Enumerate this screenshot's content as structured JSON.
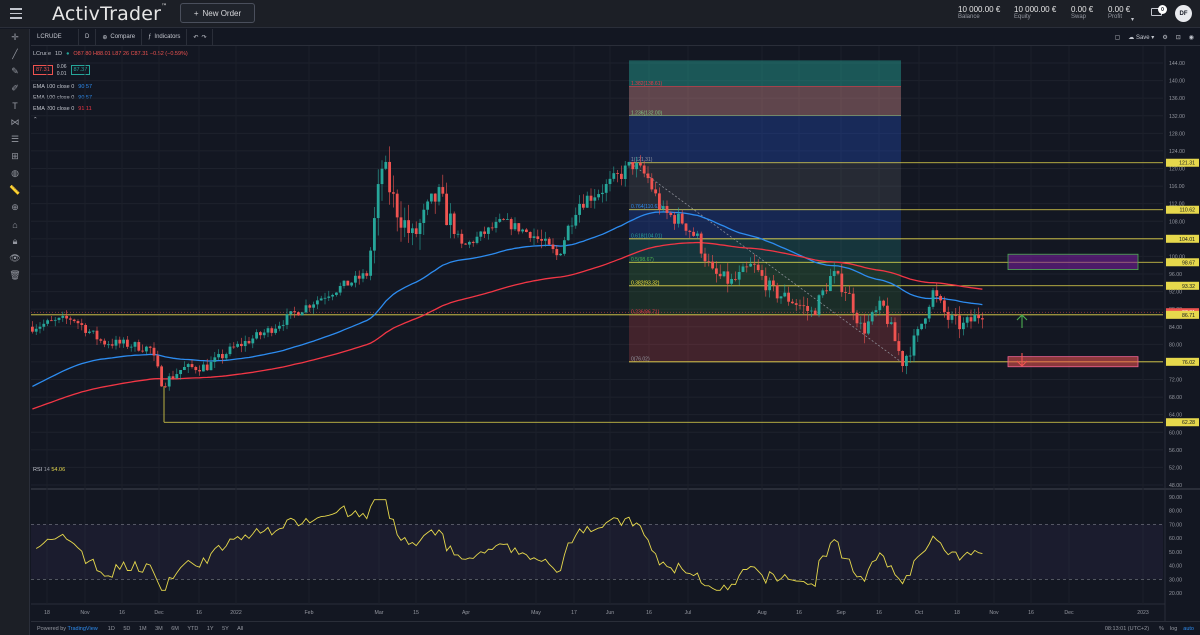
{
  "app": {
    "logo": "ActivTrader",
    "logo_tm": "™",
    "new_order_label": "New Order",
    "account": [
      {
        "value": "10 000.00 €",
        "label": "Balance"
      },
      {
        "value": "10 000.00 €",
        "label": "Equity"
      },
      {
        "value": "0.00 €",
        "label": "Swap"
      },
      {
        "value": "0.00 €",
        "label": "Profit"
      }
    ],
    "notifications": "0",
    "avatar_initials": "DF"
  },
  "toolbar": {
    "symbol": "LCRUDE",
    "interval": "D",
    "compare": "Compare",
    "indicators": "Indicators",
    "save": "Save"
  },
  "legend": {
    "symbol": "LCrude",
    "tf": "1D",
    "ohlc": "O87.80 H88.01 L87.26 C87.31 −0.52 (−0.59%)",
    "sell": "87.31",
    "spread_top": "0.06",
    "spread_bottom": "0.01",
    "buy": "87.37",
    "ema_rows": [
      {
        "label": "EMA 100 close 0",
        "value": "90.57",
        "color": "#2d8cf0"
      },
      {
        "label": "EMA 100 close 0",
        "value": "90.57",
        "color": "#2d8cf0"
      },
      {
        "label": "EMA 200 close 0",
        "value": "91.11",
        "color": "#f23645"
      }
    ]
  },
  "rsi": {
    "label": "RSI",
    "len": "14",
    "value": "54.06"
  },
  "bottom": {
    "powered": "Powered by",
    "brand": "TradingView",
    "ranges": [
      "1D",
      "5D",
      "1M",
      "3M",
      "6M",
      "YTD",
      "1Y",
      "5Y",
      "All"
    ],
    "clock": "08:13:01 (UTC+2)",
    "options": [
      "%",
      "log",
      "auto"
    ]
  },
  "price_axis_labels": [
    "144.00",
    "140.00",
    "136.00",
    "132.00",
    "128.00",
    "124.00",
    "120.00",
    "116.00",
    "112.00",
    "108.00",
    "104.00",
    "100.00",
    "96.00",
    "92.00",
    "88.00",
    "84.00",
    "80.00",
    "76.00",
    "72.00",
    "68.00",
    "64.00",
    "60.00",
    "56.00",
    "52.00",
    "48.00"
  ],
  "price_tags": [
    {
      "text": "121.31",
      "price": 121.31,
      "type": "level"
    },
    {
      "text": "110.62",
      "price": 110.62,
      "type": "level"
    },
    {
      "text": "104.01",
      "price": 104.01,
      "type": "level"
    },
    {
      "text": "98.67",
      "price": 98.67,
      "type": "level"
    },
    {
      "text": "93.32",
      "price": 93.32,
      "type": "level"
    },
    {
      "text": "87.31",
      "price": 87.31,
      "type": "sell"
    },
    {
      "text": "86.71",
      "price": 86.71,
      "type": "level"
    },
    {
      "text": "76.02",
      "price": 76.02,
      "type": "level"
    },
    {
      "text": "62.28",
      "price": 62.28,
      "type": "level"
    }
  ],
  "fib_labels": [
    {
      "text": "1.382(138.61)",
      "price": 138.61,
      "color": "#f23645"
    },
    {
      "text": "1.236(132.00)",
      "price": 132.0,
      "color": "#81c784"
    },
    {
      "text": "1(121.31)",
      "price": 121.31,
      "color": "#9598a1"
    },
    {
      "text": "0.764(110.62)",
      "price": 110.62,
      "color": "#2d8cf0"
    },
    {
      "text": "0.618(104.01)",
      "price": 104.01,
      "color": "#26a69a"
    },
    {
      "text": "0.5(98.67)",
      "price": 98.67,
      "color": "#4caf50"
    },
    {
      "text": "0.382(93.32)",
      "price": 93.32,
      "color": "#ffeb3b"
    },
    {
      "text": "0.236(86.71)",
      "price": 86.71,
      "color": "#f23645"
    },
    {
      "text": "0(76.02)",
      "price": 76.02,
      "color": "#9598a1"
    }
  ],
  "rsi_axis_labels": [
    "90.00",
    "80.00",
    "70.00",
    "60.00",
    "50.00",
    "40.00",
    "30.00",
    "20.00"
  ],
  "time_axis_labels": [
    "18",
    "Nov",
    "16",
    "Dec",
    "16",
    "2022",
    "Feb",
    "Mar",
    "15",
    "Apr",
    "May",
    "17",
    "Jun",
    "16",
    "Jul",
    "Aug",
    "16",
    "Sep",
    "16",
    "Oct",
    "18",
    "Nov",
    "16",
    "Dec",
    "2023"
  ],
  "colors": {
    "bull": "#26a69a",
    "bear": "#ef5350",
    "ema100": "#2d8cf0",
    "ema200": "#f23645",
    "level": "#e6d84c",
    "rsi": "#e6d84c"
  }
}
